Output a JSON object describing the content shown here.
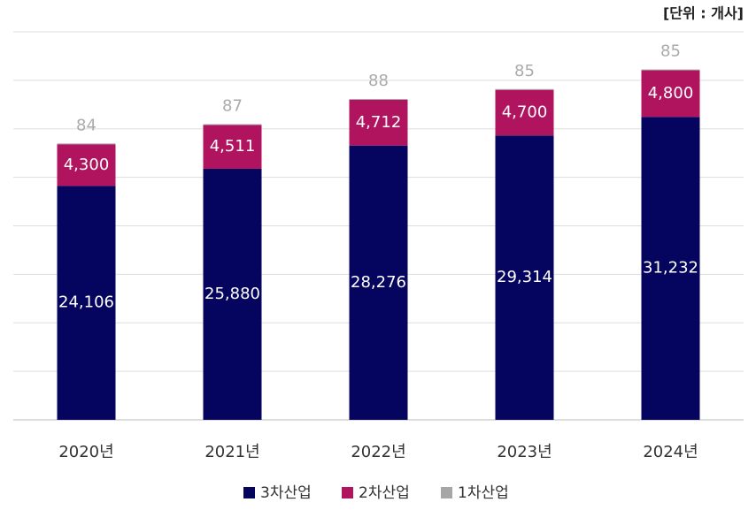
{
  "chart_data": {
    "type": "stacked_bar",
    "unit": "[단위 : 개사]",
    "categories": [
      "2020년",
      "2021년",
      "2022년",
      "2023년",
      "2024년"
    ],
    "series": [
      {
        "name": "3차산업",
        "color": "#05055f",
        "values": [
          24106,
          25880,
          28276,
          29314,
          31232
        ],
        "value_labels": [
          "24,106",
          "25,880",
          "28,276",
          "29,314",
          "31,232"
        ]
      },
      {
        "name": "2차산업",
        "color": "#b0145f",
        "values": [
          4300,
          4511,
          4712,
          4700,
          4800
        ],
        "value_labels": [
          "4,300",
          "4,511",
          "4,712",
          "4,700",
          "4,800"
        ]
      },
      {
        "name": "1차산업",
        "color": "#a6a6a6",
        "values": [
          84,
          87,
          88,
          85,
          85
        ]
      }
    ],
    "ylim": [
      0,
      40000
    ],
    "yticks": [
      0,
      5000,
      10000,
      15000,
      20000,
      25000,
      30000,
      35000,
      40000
    ],
    "grid": true
  }
}
